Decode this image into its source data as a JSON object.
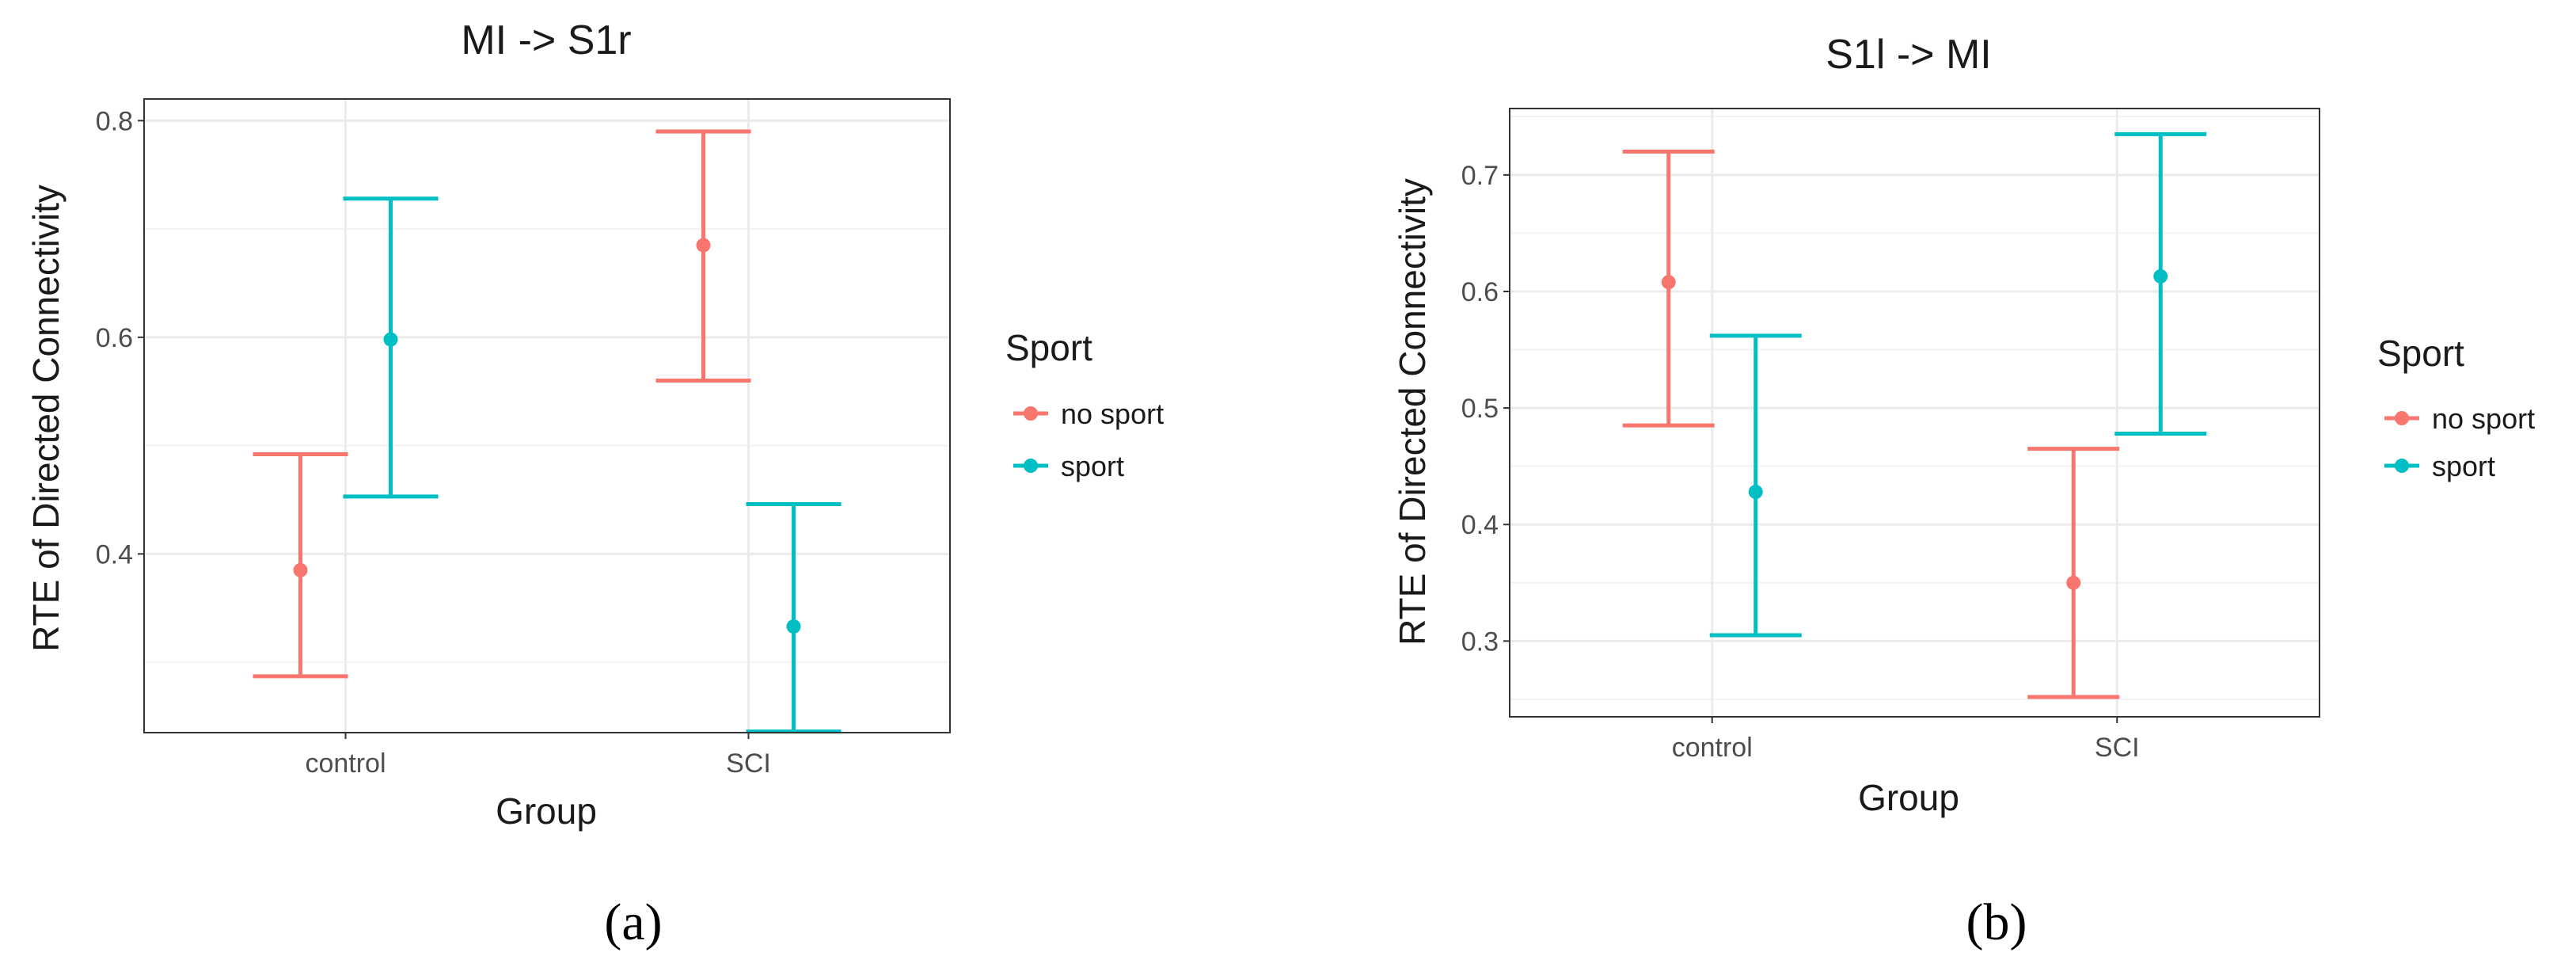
{
  "colors": {
    "no_sport": "#F8766D",
    "sport": "#00BFC4",
    "grid": "#ebebeb",
    "panel_border": "#333333"
  },
  "legend": {
    "title": "Sport",
    "items": [
      {
        "key": "no_sport",
        "label": "no sport"
      },
      {
        "key": "sport",
        "label": "sport"
      }
    ]
  },
  "chart_data": [
    {
      "type": "errorbar",
      "title": "MI -> S1r",
      "caption": "(a)",
      "xlabel": "Group",
      "ylabel": "RTE of Directed Connectivity",
      "categories": [
        "control",
        "SCI"
      ],
      "ylim": [
        0.235,
        0.82
      ],
      "yticks": [
        0.4,
        0.6,
        0.8
      ],
      "ytick_labels": [
        "0.4",
        "0.6",
        "0.8"
      ],
      "series": [
        {
          "name": "no sport",
          "key": "no_sport",
          "mean": [
            0.385,
            0.685
          ],
          "lower": [
            0.287,
            0.56
          ],
          "upper": [
            0.492,
            0.79
          ]
        },
        {
          "name": "sport",
          "key": "sport",
          "mean": [
            0.598,
            0.333
          ],
          "lower": [
            0.453,
            0.236
          ],
          "upper": [
            0.728,
            0.446
          ]
        }
      ]
    },
    {
      "type": "errorbar",
      "title": "S1l -> MI",
      "caption": "(b)",
      "xlabel": "Group",
      "ylabel": "RTE of Directed Connectivity",
      "categories": [
        "control",
        "SCI"
      ],
      "ylim": [
        0.235,
        0.757
      ],
      "yticks": [
        0.3,
        0.4,
        0.5,
        0.6,
        0.7
      ],
      "ytick_labels": [
        "0.3",
        "0.4",
        "0.5",
        "0.6",
        "0.7"
      ],
      "series": [
        {
          "name": "no sport",
          "key": "no_sport",
          "mean": [
            0.608,
            0.35
          ],
          "lower": [
            0.485,
            0.252
          ],
          "upper": [
            0.72,
            0.465
          ]
        },
        {
          "name": "sport",
          "key": "sport",
          "mean": [
            0.428,
            0.613
          ],
          "lower": [
            0.305,
            0.478
          ],
          "upper": [
            0.562,
            0.735
          ]
        }
      ]
    }
  ]
}
